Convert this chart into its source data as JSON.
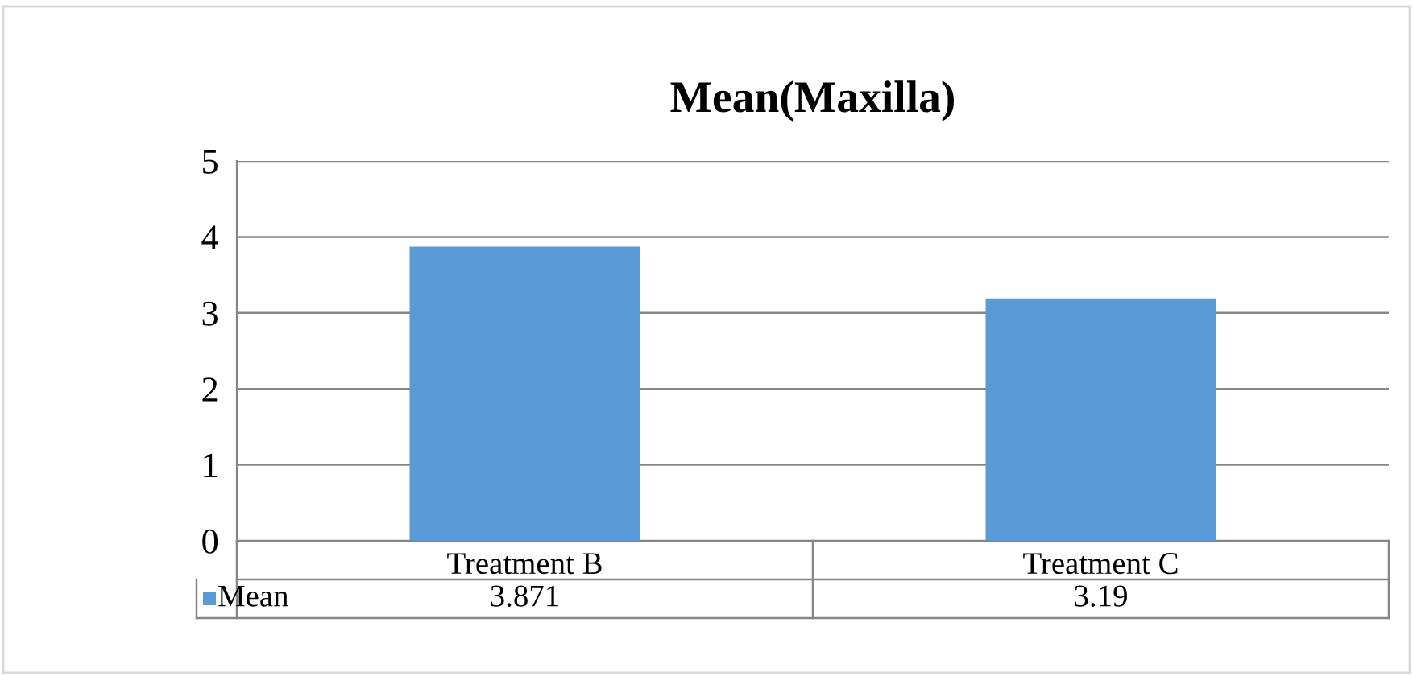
{
  "chart_data": {
    "type": "bar",
    "title": "Mean(Maxilla)",
    "categories": [
      "Treatment B",
      "Treatment C"
    ],
    "series": [
      {
        "name": "Mean",
        "color": "#5b9bd5",
        "values": [
          3.871,
          3.19
        ]
      }
    ],
    "ylim": [
      0,
      5
    ],
    "yticks": [
      0,
      1,
      2,
      3,
      4,
      5
    ],
    "grid": "y",
    "data_labels": true,
    "legend": "bottom"
  }
}
